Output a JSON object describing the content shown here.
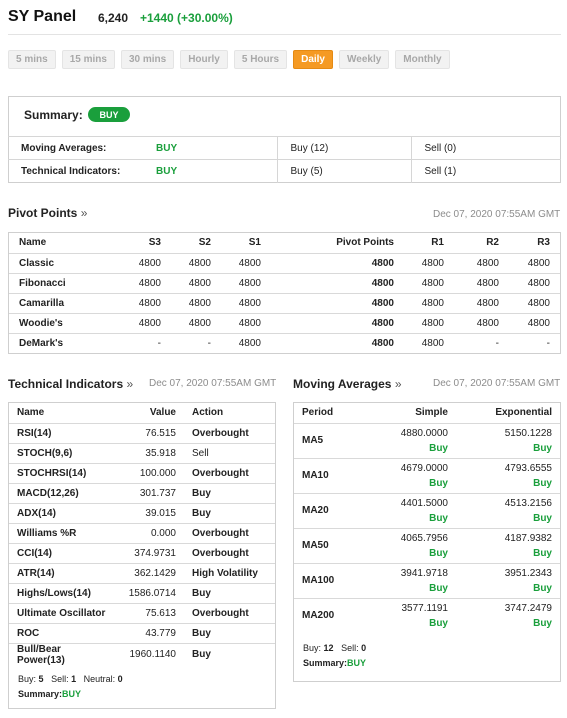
{
  "header": {
    "title": "SY Panel",
    "price": "6,240",
    "change": "+1440 (+30.00%)"
  },
  "timeframes": [
    "5 mins",
    "15 mins",
    "30 mins",
    "Hourly",
    "5 Hours",
    "Daily",
    "Weekly",
    "Monthly"
  ],
  "active_timeframe": "Daily",
  "summary": {
    "label": "Summary:",
    "signal": "BUY",
    "rows": [
      {
        "label": "Moving Averages:",
        "signal": "BUY",
        "buy": "Buy (12)",
        "sell": "Sell (0)"
      },
      {
        "label": "Technical Indicators:",
        "signal": "BUY",
        "buy": "Buy (5)",
        "sell": "Sell (1)"
      }
    ]
  },
  "pivot": {
    "title": "Pivot Points",
    "date": "Dec 07, 2020 07:55AM GMT",
    "headers": [
      "Name",
      "S3",
      "S2",
      "S1",
      "Pivot Points",
      "R1",
      "R2",
      "R3"
    ],
    "rows": [
      [
        "Classic",
        "4800",
        "4800",
        "4800",
        "4800",
        "4800",
        "4800",
        "4800"
      ],
      [
        "Fibonacci",
        "4800",
        "4800",
        "4800",
        "4800",
        "4800",
        "4800",
        "4800"
      ],
      [
        "Camarilla",
        "4800",
        "4800",
        "4800",
        "4800",
        "4800",
        "4800",
        "4800"
      ],
      [
        "Woodie's",
        "4800",
        "4800",
        "4800",
        "4800",
        "4800",
        "4800",
        "4800"
      ],
      [
        "DeMark's",
        "-",
        "-",
        "4800",
        "4800",
        "4800",
        "-",
        "-"
      ]
    ]
  },
  "technical": {
    "title": "Technical Indicators",
    "date": "Dec 07, 2020 07:55AM GMT",
    "headers": [
      "Name",
      "Value",
      "Action"
    ],
    "rows": [
      [
        "RSI(14)",
        "76.515",
        "Overbought"
      ],
      [
        "STOCH(9,6)",
        "35.918",
        "Sell"
      ],
      [
        "STOCHRSI(14)",
        "100.000",
        "Overbought"
      ],
      [
        "MACD(12,26)",
        "301.737",
        "Buy"
      ],
      [
        "ADX(14)",
        "39.015",
        "Buy"
      ],
      [
        "Williams %R",
        "0.000",
        "Overbought"
      ],
      [
        "CCI(14)",
        "374.9731",
        "Overbought"
      ],
      [
        "ATR(14)",
        "362.1429",
        "High Volatility"
      ],
      [
        "Highs/Lows(14)",
        "1586.0714",
        "Buy"
      ],
      [
        "Ultimate Oscillator",
        "75.613",
        "Overbought"
      ],
      [
        "ROC",
        "43.779",
        "Buy"
      ],
      [
        "Bull/Bear Power(13)",
        "1960.1140",
        "Buy"
      ]
    ],
    "footer": {
      "buy_label": "Buy:",
      "buy": "5",
      "sell_label": "Sell:",
      "sell": "1",
      "neutral_label": "Neutral:",
      "neutral": "0",
      "summary_label": "Summary:",
      "summary": "BUY"
    }
  },
  "moving_averages": {
    "title": "Moving Averages",
    "date": "Dec 07, 2020 07:55AM GMT",
    "headers": [
      "Period",
      "Simple",
      "Exponential"
    ],
    "rows": [
      {
        "period": "MA5",
        "simple": "4880.0000",
        "simple_action": "Buy",
        "exp": "5150.1228",
        "exp_action": "Buy"
      },
      {
        "period": "MA10",
        "simple": "4679.0000",
        "simple_action": "Buy",
        "exp": "4793.6555",
        "exp_action": "Buy"
      },
      {
        "period": "MA20",
        "simple": "4401.5000",
        "simple_action": "Buy",
        "exp": "4513.2156",
        "exp_action": "Buy"
      },
      {
        "period": "MA50",
        "simple": "4065.7956",
        "simple_action": "Buy",
        "exp": "4187.9382",
        "exp_action": "Buy"
      },
      {
        "period": "MA100",
        "simple": "3941.9718",
        "simple_action": "Buy",
        "exp": "3951.2343",
        "exp_action": "Buy"
      },
      {
        "period": "MA200",
        "simple": "3577.1191",
        "simple_action": "Buy",
        "exp": "3747.2479",
        "exp_action": "Buy"
      }
    ],
    "footer": {
      "buy_label": "Buy:",
      "buy": "12",
      "sell_label": "Sell:",
      "sell": "0",
      "summary_label": "Summary:",
      "summary": "BUY"
    }
  },
  "colors": {
    "buy": "#1a9f3c",
    "sell": "#cc2b2b",
    "active_tab": "#f59a23"
  }
}
